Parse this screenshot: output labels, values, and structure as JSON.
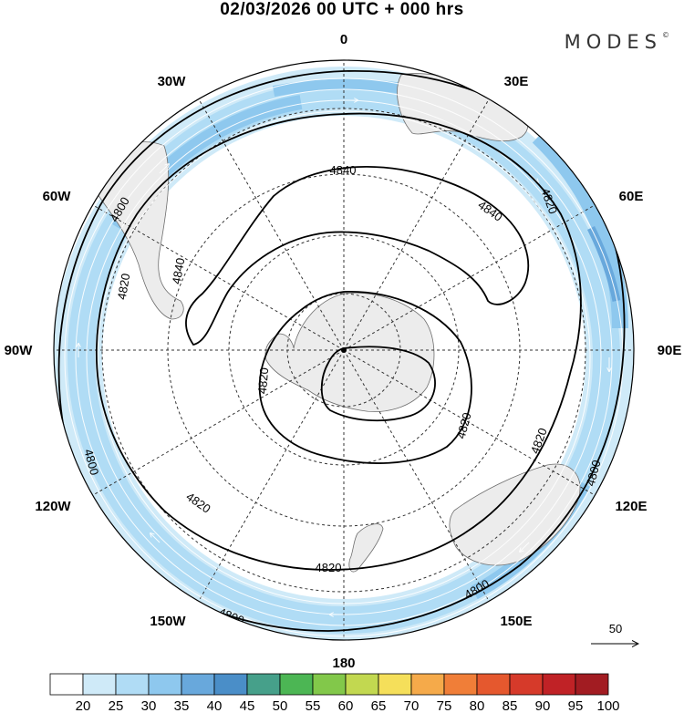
{
  "header": {
    "title": "02/03/2026  00 UTC  + 000 hrs",
    "logo_text": "MODES",
    "logo_mark": "©"
  },
  "map": {
    "projection": "south-polar-stereographic",
    "longitude_labels": {
      "top": "0",
      "top_right": "30E",
      "upper_right": "60E",
      "right": "90E",
      "lower_right": "120E",
      "bottom_right": "150E",
      "bottom": "180",
      "bottom_left": "150W",
      "lower_left": "120W",
      "left": "90W",
      "upper_left": "60W",
      "top_left": "30W"
    },
    "contour_labels": {
      "c1": "4840",
      "c2": "4840",
      "c3": "4840",
      "c4": "4820",
      "c5": "4820",
      "c6": "4820",
      "c7": "4820",
      "c8": "4820",
      "c9": "4820",
      "c10": "4820",
      "c11": "4800",
      "c12": "4800",
      "c13": "4800",
      "c14": "4800",
      "c15": "4800"
    },
    "vector_reference": "50"
  },
  "colorbar": {
    "labels": [
      "20",
      "25",
      "30",
      "35",
      "40",
      "45",
      "50",
      "55",
      "60",
      "65",
      "70",
      "75",
      "80",
      "85",
      "90",
      "95",
      "100"
    ],
    "colors": [
      "#ffffff",
      "#cfeaf8",
      "#b0dcf5",
      "#8ec8ee",
      "#68a8dc",
      "#4a8ec8",
      "#46a08a",
      "#4cb654",
      "#82c84a",
      "#c2d850",
      "#f5df5a",
      "#f5aa4a",
      "#f07e38",
      "#e5582e",
      "#d63a2a",
      "#c02226",
      "#a21c22"
    ]
  }
}
